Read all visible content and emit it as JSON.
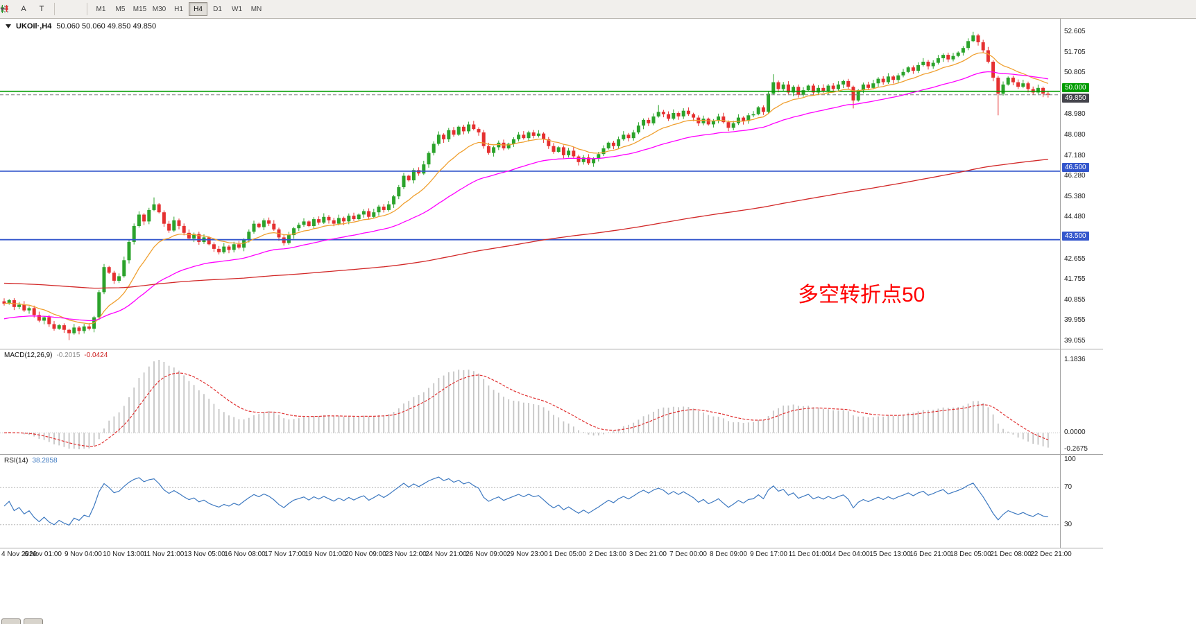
{
  "toolbar": {
    "tool_buttons": [
      {
        "label": "A"
      },
      {
        "label": "T"
      }
    ],
    "timeframes": [
      "M1",
      "M5",
      "M15",
      "M30",
      "H1",
      "H4",
      "D1",
      "W1",
      "MN"
    ],
    "active_timeframe": "H4"
  },
  "quote_header": {
    "symbol": "UKOil·,H4",
    "ohlc": "50.060 50.060 49.850 49.850"
  },
  "annotation": {
    "text": "多空转折点50",
    "color": "#ff0000"
  },
  "price_axis": {
    "labels": [
      "52.605",
      "51.705",
      "50.805",
      "48.980",
      "48.080",
      "47.180",
      "46.280",
      "45.380",
      "44.480",
      "42.655",
      "41.755",
      "40.855",
      "39.955",
      "39.055"
    ],
    "badges": [
      {
        "text": "50.000",
        "price": 50.0,
        "bg": "#009c00",
        "pos": "above"
      },
      {
        "text": "49.850",
        "price": 49.85,
        "bg": "#44444c",
        "pos": "below"
      },
      {
        "text": "46.500",
        "price": 46.5,
        "bg": "#3356cc",
        "pos": "above"
      },
      {
        "text": "43.500",
        "price": 43.5,
        "bg": "#3356cc",
        "pos": "above"
      }
    ]
  },
  "macd_panel": {
    "label": "MACD(12,26,9)",
    "value_main": "-0.2015",
    "value_signal": "-0.0424",
    "axis": [
      "1.1836",
      "0.0000",
      "-0.2675"
    ],
    "max": 1.1836,
    "min": -0.2675
  },
  "rsi_panel": {
    "label": "RSI(14)",
    "value": "38.2858",
    "axis": [
      {
        "text": "100",
        "value": 100
      },
      {
        "text": "70",
        "value": 70
      },
      {
        "text": "30",
        "value": 30
      }
    ],
    "levels": [
      70,
      30
    ]
  },
  "chart_data": {
    "type": "candlestick",
    "title": "UKOil H4",
    "ylim": [
      39.055,
      52.605
    ],
    "first_open": 40.8,
    "closes": [
      40.7,
      40.85,
      40.55,
      40.65,
      40.4,
      40.5,
      40.2,
      39.95,
      40.1,
      39.8,
      39.6,
      39.75,
      39.55,
      39.4,
      39.65,
      39.5,
      39.7,
      39.6,
      40.1,
      41.2,
      42.3,
      42.05,
      41.7,
      41.9,
      42.6,
      43.4,
      44.1,
      44.6,
      44.3,
      44.8,
      45.05,
      44.7,
      44.2,
      43.9,
      44.35,
      44.1,
      43.8,
      43.55,
      43.75,
      43.4,
      43.6,
      43.3,
      43.1,
      42.95,
      43.2,
      43.05,
      43.3,
      43.15,
      43.5,
      43.85,
      44.2,
      44.05,
      44.35,
      44.2,
      43.95,
      43.6,
      43.35,
      43.7,
      44.0,
      44.15,
      44.3,
      44.1,
      44.4,
      44.25,
      44.5,
      44.35,
      44.2,
      44.45,
      44.3,
      44.55,
      44.4,
      44.6,
      44.75,
      44.5,
      44.7,
      44.95,
      44.8,
      45.05,
      45.4,
      45.8,
      46.3,
      46.1,
      46.55,
      46.4,
      46.8,
      47.3,
      47.7,
      48.1,
      47.9,
      48.3,
      48.1,
      48.45,
      48.25,
      48.55,
      48.35,
      48.2,
      47.6,
      47.3,
      47.55,
      47.75,
      47.5,
      47.7,
      47.9,
      48.1,
      47.95,
      48.2,
      48.05,
      48.15,
      47.9,
      47.6,
      47.35,
      47.55,
      47.2,
      47.4,
      47.15,
      46.9,
      47.1,
      46.85,
      47.05,
      47.25,
      47.5,
      47.75,
      47.6,
      47.9,
      48.1,
      47.95,
      48.2,
      48.5,
      48.75,
      48.6,
      48.9,
      49.1,
      49.0,
      48.8,
      49.05,
      48.9,
      49.15,
      49.0,
      48.85,
      48.6,
      48.8,
      48.55,
      48.7,
      48.9,
      48.65,
      48.4,
      48.6,
      48.85,
      48.7,
      48.95,
      49.0,
      49.3,
      49.1,
      49.9,
      50.4,
      50.1,
      50.3,
      49.95,
      50.2,
      49.85,
      50.05,
      50.25,
      49.95,
      50.15,
      50.0,
      50.25,
      50.1,
      50.3,
      50.45,
      50.2,
      49.6,
      50.05,
      50.3,
      50.15,
      50.35,
      50.55,
      50.4,
      50.65,
      50.5,
      50.7,
      50.85,
      51.05,
      50.9,
      51.15,
      51.3,
      51.1,
      51.25,
      51.45,
      51.6,
      51.4,
      51.55,
      51.7,
      51.9,
      52.2,
      52.45,
      52.15,
      51.8,
      51.3,
      50.6,
      49.9,
      50.3,
      50.6,
      50.4,
      50.2,
      50.35,
      50.1,
      49.95,
      50.15,
      49.9,
      49.85
    ],
    "wick_overrides": {
      "13": [
        0.05,
        0.3
      ],
      "30": [
        0.3,
        0.05
      ],
      "131": [
        0.3,
        0.05
      ],
      "154": [
        0.35,
        0.05
      ],
      "170": [
        0.05,
        0.35
      ],
      "194": [
        0.16,
        0.05
      ],
      "199": [
        0.08,
        0.95
      ]
    },
    "hlines": [
      {
        "price": 50.0,
        "color": "#009c00",
        "style": "solid",
        "width": 1.6
      },
      {
        "price": 49.85,
        "color": "#7a7a7a",
        "style": "dash",
        "width": 1
      },
      {
        "price": 46.5,
        "color": "#3356cc",
        "style": "solid",
        "width": 1.8
      },
      {
        "price": 43.5,
        "color": "#3356cc",
        "style": "solid",
        "width": 1.8
      }
    ],
    "moving_averages": [
      {
        "name": "MA-fast",
        "period": 13,
        "seed": 40.7,
        "color": "#f0a030"
      },
      {
        "name": "MA-mid",
        "period": 40,
        "seed": 40.0,
        "color": "#ff00ff"
      },
      {
        "name": "MA-slow",
        "period": 250,
        "seed": 41.6,
        "color": "#d22828"
      }
    ],
    "macd": {
      "fast": 12,
      "slow": 26,
      "signal": 9,
      "hist_color": "#c4c4c4",
      "signal_color": "#e03030"
    },
    "rsi": {
      "period": 14,
      "color": "#3c78c0",
      "levels": [
        70,
        30
      ]
    },
    "bull_color": "#2ba32b",
    "bear_color": "#e53030",
    "x_labels": [
      "4 Nov 2020",
      "6 Nov 01:00",
      "9 Nov 04:00",
      "10 Nov 13:00",
      "11 Nov 21:00",
      "13 Nov 05:00",
      "16 Nov 08:00",
      "17 Nov 17:00",
      "19 Nov 01:00",
      "20 Nov 09:00",
      "23 Nov 12:00",
      "24 Nov 21:00",
      "26 Nov 09:00",
      "29 Nov 23:00",
      "1 Dec 05:00",
      "2 Dec 13:00",
      "3 Dec 21:00",
      "7 Dec 00:00",
      "8 Dec 09:00",
      "9 Dec 17:00",
      "11 Dec 01:00",
      "14 Dec 04:00",
      "15 Dec 13:00",
      "16 Dec 21:00",
      "18 Dec 05:00",
      "21 Dec 08:00",
      "22 Dec 21:00"
    ]
  }
}
